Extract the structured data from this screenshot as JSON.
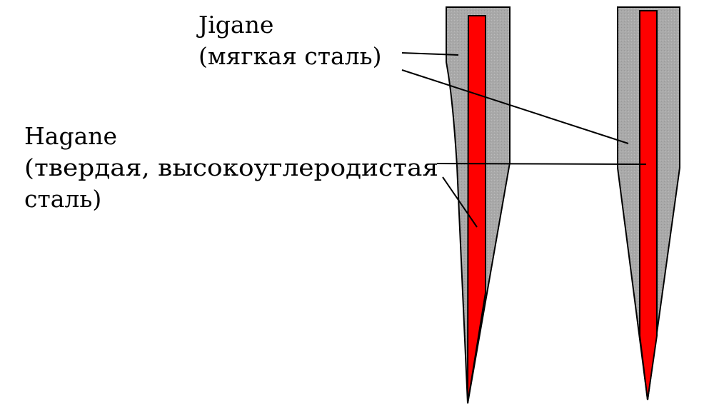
{
  "labels": {
    "jigane": {
      "line1": "Jigane",
      "line2": "(мягкая сталь)"
    },
    "hagane": {
      "line1": "Hagane",
      "line2": "(твердая, высокоуглеродистая",
      "line3": "сталь)"
    }
  },
  "colors": {
    "jigane_fill": "#a9a9a9",
    "hagane_fill": "#ff0000",
    "outline": "#000000",
    "background": "#ffffff"
  }
}
